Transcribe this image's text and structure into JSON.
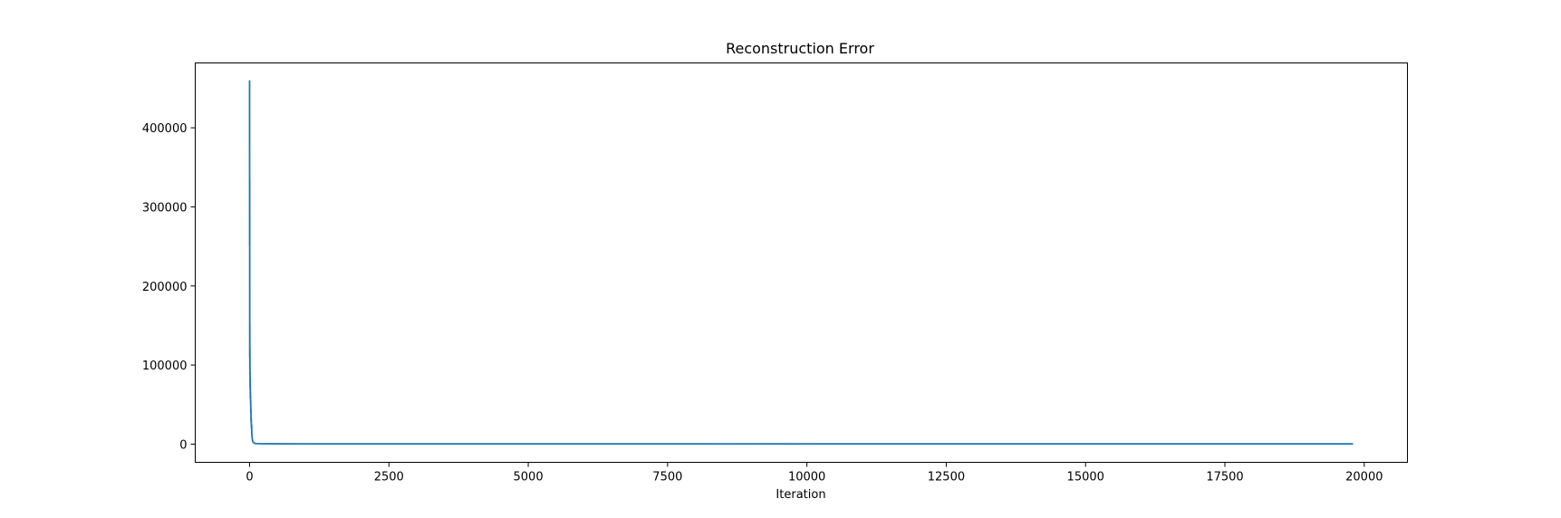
{
  "chart_data": {
    "type": "line",
    "title": "Reconstruction Error",
    "xlabel": "Iteration",
    "ylabel": "",
    "xlim": [
      -975,
      20775
    ],
    "ylim": [
      -23000,
      482000
    ],
    "x_ticks": [
      0,
      2500,
      5000,
      7500,
      10000,
      12500,
      15000,
      17500,
      20000
    ],
    "x_tick_labels": [
      "0",
      "2500",
      "5000",
      "7500",
      "10000",
      "12500",
      "15000",
      "17500",
      "20000"
    ],
    "y_ticks": [
      0,
      100000,
      200000,
      300000,
      400000
    ],
    "y_tick_labels": [
      "0",
      "100000",
      "200000",
      "300000",
      "400000"
    ],
    "grid": false,
    "legend": "none",
    "series": [
      {
        "color": "#1f77b4",
        "x": [
          0,
          1,
          2,
          3,
          4,
          5,
          6,
          7,
          8,
          10,
          12,
          14,
          16,
          18,
          20,
          22,
          24,
          27,
          30,
          33,
          36,
          40,
          45,
          50,
          55,
          60,
          70,
          80,
          90,
          100,
          150,
          200,
          500,
          1000,
          5000,
          10000,
          15000,
          19800
        ],
        "y": [
          460000,
          250000,
          335000,
          110000,
          150000,
          95000,
          120000,
          88000,
          92000,
          70000,
          85000,
          58000,
          66000,
          52000,
          55000,
          40000,
          45000,
          28000,
          32000,
          20000,
          24000,
          13000,
          9000,
          6000,
          4000,
          3000,
          2000,
          1500,
          1000,
          800,
          600,
          500,
          400,
          350,
          300,
          280,
          260,
          250
        ]
      }
    ]
  }
}
